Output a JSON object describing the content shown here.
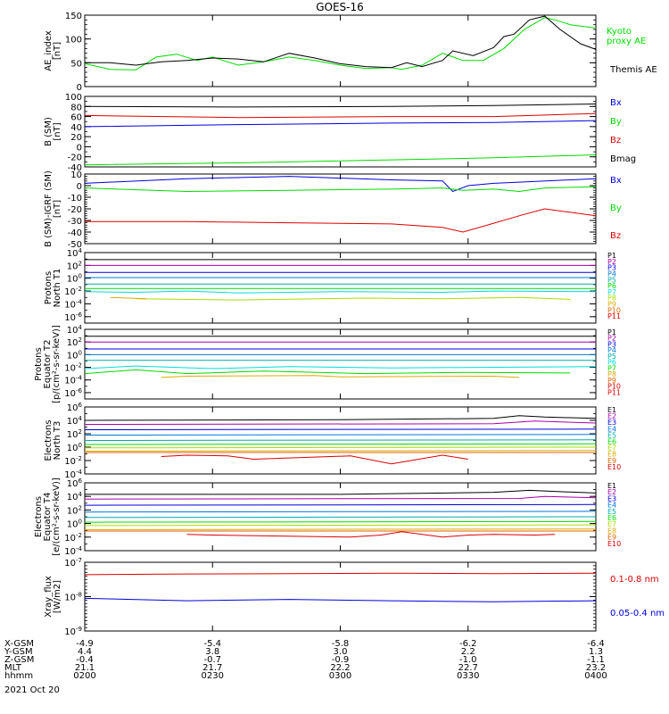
{
  "title": "GOES-16",
  "date_label": "2021 Oct 20",
  "chart_data": [
    {
      "type": "line",
      "ylabel": [
        "AE_index",
        "[nT]"
      ],
      "ylim": [
        0,
        150
      ],
      "ytick_labels": [
        "0",
        "50",
        "100",
        "150"
      ],
      "ytick_values": [
        0,
        50,
        100,
        150
      ],
      "minor_step": 10,
      "log": false,
      "series": [
        {
          "name": "Kyoto",
          "name2": "proxy AE",
          "color": "#00dd00",
          "x": [
            0,
            0.05,
            0.1,
            0.14,
            0.18,
            0.22,
            0.25,
            0.3,
            0.35,
            0.4,
            0.45,
            0.5,
            0.55,
            0.6,
            0.62,
            0.66,
            0.7,
            0.74,
            0.78,
            0.82,
            0.86,
            0.9,
            0.92,
            0.95,
            1.0
          ],
          "y": [
            48,
            36,
            35,
            62,
            68,
            55,
            62,
            45,
            52,
            62,
            55,
            45,
            38,
            40,
            36,
            45,
            70,
            55,
            55,
            80,
            120,
            145,
            140,
            130,
            123
          ]
        },
        {
          "name": "Themis AE",
          "color": "#000000",
          "x": [
            0,
            0.05,
            0.1,
            0.15,
            0.2,
            0.25,
            0.3,
            0.35,
            0.4,
            0.45,
            0.5,
            0.55,
            0.6,
            0.63,
            0.66,
            0.7,
            0.72,
            0.76,
            0.8,
            0.82,
            0.84,
            0.87,
            0.9,
            0.93,
            0.97,
            1.0
          ],
          "y": [
            50,
            50,
            45,
            52,
            55,
            60,
            58,
            52,
            70,
            60,
            48,
            42,
            40,
            50,
            42,
            55,
            75,
            65,
            82,
            105,
            110,
            140,
            148,
            120,
            90,
            78
          ]
        }
      ]
    },
    {
      "type": "line",
      "ylabel": [
        "B (SM)",
        "[nT]"
      ],
      "ylim": [
        -40,
        100
      ],
      "ytick_labels": [
        "-40",
        "-20",
        "0",
        "20",
        "40",
        "60",
        "80",
        "100"
      ],
      "ytick_values": [
        -40,
        -20,
        0,
        20,
        40,
        60,
        80,
        100
      ],
      "minor_step": 10,
      "log": false,
      "series": [
        {
          "name": "Bx",
          "color": "#0000dd",
          "x": [
            0,
            0.3,
            0.6,
            0.8,
            1.0
          ],
          "y": [
            40,
            44,
            47,
            48,
            52
          ]
        },
        {
          "name": "By",
          "color": "#00dd00",
          "x": [
            0,
            0.3,
            0.6,
            0.8,
            1.0
          ],
          "y": [
            -36,
            -32,
            -26,
            -22,
            -16
          ]
        },
        {
          "name": "Bz",
          "color": "#dd0000",
          "x": [
            0,
            0.3,
            0.6,
            0.8,
            1.0
          ],
          "y": [
            62,
            58,
            60,
            60,
            66
          ]
        },
        {
          "name": "Bmag",
          "color": "#000000",
          "x": [
            0,
            0.3,
            0.6,
            0.8,
            1.0
          ],
          "y": [
            80,
            79,
            80,
            82,
            85
          ]
        }
      ]
    },
    {
      "type": "line",
      "ylabel": [
        "B (SM)-IGRF (SM)",
        "[nT]"
      ],
      "ylim": [
        -50,
        10
      ],
      "ytick_labels": [
        "-50",
        "-40",
        "-30",
        "-20",
        "-10",
        "0",
        "10"
      ],
      "ytick_values": [
        -50,
        -40,
        -30,
        -20,
        -10,
        0,
        10
      ],
      "minor_step": 2,
      "log": false,
      "series": [
        {
          "name": "Bx",
          "color": "#0000dd",
          "x": [
            0,
            0.2,
            0.4,
            0.6,
            0.7,
            0.72,
            0.75,
            0.8,
            0.85,
            1.0
          ],
          "y": [
            2,
            6,
            8,
            5,
            4,
            -5,
            0,
            2,
            3,
            6
          ]
        },
        {
          "name": "By",
          "color": "#00dd00",
          "x": [
            0,
            0.2,
            0.4,
            0.6,
            0.7,
            0.74,
            0.8,
            0.85,
            0.9,
            1.0
          ],
          "y": [
            -2,
            -5,
            -4,
            -3,
            -2,
            -4,
            -3,
            -5,
            -2,
            -1
          ]
        },
        {
          "name": "Bz",
          "color": "#dd0000",
          "x": [
            0,
            0.2,
            0.4,
            0.6,
            0.7,
            0.74,
            0.78,
            0.85,
            0.9,
            1.0
          ],
          "y": [
            -31,
            -31,
            -32,
            -33,
            -36,
            -40,
            -35,
            -26,
            -20,
            -26
          ]
        }
      ]
    },
    {
      "type": "line",
      "ylabel": [
        "Protons",
        "North T1"
      ],
      "ylim": [
        -7,
        4
      ],
      "ytick_labels": [
        "10^-6",
        "10^-4",
        "10^-2",
        "10^0",
        "10^2",
        "10^4"
      ],
      "ytick_values": [
        -6,
        -4,
        -2,
        0,
        2,
        4
      ],
      "minor_step": 1,
      "log": true,
      "series": [
        {
          "name": "P1",
          "color": "#000000",
          "x": [
            0,
            1
          ],
          "y": [
            2.9,
            2.9
          ]
        },
        {
          "name": "P2",
          "color": "#aa00aa",
          "x": [
            0,
            1
          ],
          "y": [
            2.0,
            2.0
          ]
        },
        {
          "name": "P3",
          "color": "#0000dd",
          "x": [
            0,
            1
          ],
          "y": [
            0.9,
            0.9
          ]
        },
        {
          "name": "P4",
          "color": "#0077dd",
          "x": [
            0,
            1
          ],
          "y": [
            0.1,
            0.1
          ]
        },
        {
          "name": "P5",
          "color": "#00aaaa",
          "x": [
            0,
            1
          ],
          "y": [
            -0.9,
            -0.9
          ]
        },
        {
          "name": "P6",
          "color": "#00dd00",
          "x": [
            0,
            1
          ],
          "y": [
            -1.6,
            -1.6
          ]
        },
        {
          "name": "P7",
          "color": "#00dddd",
          "x": [
            0,
            0.1,
            0.2,
            0.3,
            0.5,
            0.7,
            0.8,
            1.0
          ],
          "y": [
            -2.1,
            -2.2,
            -2.0,
            -2.3,
            -2.1,
            -2.2,
            -2.0,
            -2.1
          ]
        },
        {
          "name": "P8",
          "color": "#aadd00",
          "x": [
            0.1,
            0.3,
            0.55,
            0.7,
            0.85,
            0.95
          ],
          "y": [
            -3.2,
            -3.4,
            -3.1,
            -3.2,
            -3.0,
            -3.3
          ]
        },
        {
          "name": "P9",
          "color": "#ddaa00",
          "x": [
            0.05,
            0.12
          ],
          "y": [
            -3.0,
            -3.2
          ]
        },
        {
          "name": "P10",
          "color": "#dd6600",
          "x": [],
          "y": []
        },
        {
          "name": "P11",
          "color": "#dd0000",
          "x": [],
          "y": []
        }
      ]
    },
    {
      "type": "line",
      "ylabel": [
        "Protons",
        "Equator T2",
        "[p/(cm²-s-sr-keV)]"
      ],
      "ylim": [
        -7,
        4
      ],
      "ytick_labels": [
        "10^-6",
        "10^-4",
        "10^-2",
        "10^0",
        "10^2",
        "10^4"
      ],
      "ytick_values": [
        -6,
        -4,
        -2,
        0,
        2,
        4
      ],
      "minor_step": 1,
      "log": true,
      "series": [
        {
          "name": "P1",
          "color": "#000000",
          "x": [
            0,
            1
          ],
          "y": [
            2.9,
            2.9
          ]
        },
        {
          "name": "P2",
          "color": "#aa00aa",
          "x": [
            0,
            1
          ],
          "y": [
            2.0,
            2.0
          ]
        },
        {
          "name": "P3",
          "color": "#0000dd",
          "x": [
            0,
            1
          ],
          "y": [
            0.9,
            0.9
          ]
        },
        {
          "name": "P4",
          "color": "#0077dd",
          "x": [
            0,
            1
          ],
          "y": [
            0.0,
            0.0
          ]
        },
        {
          "name": "P5",
          "color": "#00aaaa",
          "x": [
            0,
            1
          ],
          "y": [
            -0.9,
            -0.9
          ]
        },
        {
          "name": "P6",
          "color": "#00dddd",
          "x": [
            0,
            0.1,
            0.25,
            0.4,
            0.6,
            0.8,
            1.0
          ],
          "y": [
            -2.2,
            -1.8,
            -2.2,
            -1.9,
            -2.1,
            -2.0,
            -1.9
          ]
        },
        {
          "name": "P7",
          "color": "#00dd00",
          "x": [
            0,
            0.1,
            0.2,
            0.35,
            0.55,
            0.75,
            0.95
          ],
          "y": [
            -3.0,
            -2.4,
            -3.0,
            -2.6,
            -3.0,
            -2.8,
            -2.9
          ]
        },
        {
          "name": "P8",
          "color": "#ddaa00",
          "x": [
            0.15,
            0.2,
            0.45,
            0.5,
            0.8,
            0.85
          ],
          "y": [
            -3.6,
            -3.4,
            -3.3,
            -3.5,
            -3.4,
            -3.6
          ]
        },
        {
          "name": "P9",
          "color": "#dd6600",
          "x": [],
          "y": []
        },
        {
          "name": "P10",
          "color": "#dd0000",
          "x": [],
          "y": []
        },
        {
          "name": "P11",
          "color": "#dd0000",
          "x": [],
          "y": []
        }
      ]
    },
    {
      "type": "line",
      "ylabel": [
        "Electrons",
        "North T3"
      ],
      "ylim": [
        -4,
        6
      ],
      "ytick_labels": [
        "10^-4",
        "10^-2",
        "10^0",
        "10^2",
        "10^4",
        "10^6"
      ],
      "ytick_values": [
        -4,
        -2,
        0,
        2,
        4,
        6
      ],
      "minor_step": 1,
      "log": true,
      "series": [
        {
          "name": "E1",
          "color": "#000000",
          "x": [
            0,
            0.5,
            0.8,
            0.85,
            0.9,
            1.0
          ],
          "y": [
            4.0,
            4.1,
            4.3,
            4.7,
            4.5,
            4.3
          ]
        },
        {
          "name": "E2",
          "color": "#aa00aa",
          "x": [
            0,
            0.8,
            0.88,
            1.0
          ],
          "y": [
            3.4,
            3.5,
            3.9,
            3.6
          ]
        },
        {
          "name": "E3",
          "color": "#0000dd",
          "x": [
            0,
            1
          ],
          "y": [
            2.6,
            2.7
          ]
        },
        {
          "name": "E4",
          "color": "#0077dd",
          "x": [
            0,
            1
          ],
          "y": [
            1.8,
            1.9
          ]
        },
        {
          "name": "E5",
          "color": "#00aaaa",
          "x": [
            0,
            1
          ],
          "y": [
            1.0,
            1.1
          ]
        },
        {
          "name": "E6",
          "color": "#00dd00",
          "x": [
            0,
            1
          ],
          "y": [
            0.4,
            0.5
          ]
        },
        {
          "name": "E7",
          "color": "#aadd00",
          "x": [
            0,
            1
          ],
          "y": [
            -0.1,
            0.0
          ]
        },
        {
          "name": "E8",
          "color": "#ddaa00",
          "x": [
            0,
            1
          ],
          "y": [
            -0.6,
            -0.5
          ]
        },
        {
          "name": "E9",
          "color": "#dd6600",
          "x": [
            0,
            1
          ],
          "y": [
            -0.8,
            -0.8
          ]
        },
        {
          "name": "E10",
          "color": "#dd0000",
          "x": [
            0.15,
            0.2,
            0.28,
            0.33,
            0.52,
            0.6,
            0.7,
            0.75
          ],
          "y": [
            -1.4,
            -1.2,
            -1.3,
            -1.8,
            -1.3,
            -2.5,
            -1.2,
            -1.8
          ]
        }
      ]
    },
    {
      "type": "line",
      "ylabel": [
        "Electrons",
        "Equator T4",
        "[e/(cm²-s-sr-keV)]"
      ],
      "ylim": [
        -4,
        6
      ],
      "ytick_labels": [
        "10^-4",
        "10^-2",
        "10^0",
        "10^2",
        "10^4",
        "10^6"
      ],
      "ytick_values": [
        -4,
        -2,
        0,
        2,
        4,
        6
      ],
      "minor_step": 1,
      "log": true,
      "series": [
        {
          "name": "E1",
          "color": "#000000",
          "x": [
            0,
            0.5,
            0.8,
            0.87,
            0.93,
            1.0
          ],
          "y": [
            4.3,
            4.3,
            4.6,
            4.9,
            4.7,
            4.5
          ]
        },
        {
          "name": "E2",
          "color": "#aa00aa",
          "x": [
            0,
            0.85,
            0.9,
            1.0
          ],
          "y": [
            3.6,
            3.7,
            4.0,
            3.8
          ]
        },
        {
          "name": "E3",
          "color": "#0000dd",
          "x": [
            0,
            1
          ],
          "y": [
            2.7,
            2.8
          ]
        },
        {
          "name": "E4",
          "color": "#0077dd",
          "x": [
            0,
            1
          ],
          "y": [
            1.7,
            1.8
          ]
        },
        {
          "name": "E5",
          "color": "#00aaaa",
          "x": [
            0,
            1
          ],
          "y": [
            0.9,
            1.0
          ]
        },
        {
          "name": "E6",
          "color": "#00dd00",
          "x": [
            0,
            1
          ],
          "y": [
            0.2,
            0.3
          ]
        },
        {
          "name": "E7",
          "color": "#aadd00",
          "x": [
            0,
            1
          ],
          "y": [
            -0.3,
            -0.2
          ]
        },
        {
          "name": "E8",
          "color": "#ddaa00",
          "x": [
            0,
            1
          ],
          "y": [
            -0.9,
            -0.8
          ]
        },
        {
          "name": "E9",
          "color": "#dd6600",
          "x": [
            0,
            1
          ],
          "y": [
            -1.1,
            -1.1
          ]
        },
        {
          "name": "E10",
          "color": "#dd0000",
          "x": [
            0.2,
            0.25,
            0.52,
            0.58,
            0.62,
            0.7,
            0.75,
            0.8,
            0.88,
            0.92
          ],
          "y": [
            -1.6,
            -1.7,
            -2.0,
            -1.7,
            -1.2,
            -2.0,
            -1.7,
            -1.6,
            -1.7,
            -1.6
          ]
        }
      ]
    },
    {
      "type": "line",
      "ylabel": [
        "Xray_flux",
        "[W/m2]"
      ],
      "ylim": [
        -9,
        -7
      ],
      "ytick_labels": [
        "10^-9",
        "10^-8",
        "10^-7"
      ],
      "ytick_values": [
        -9,
        -8,
        -7
      ],
      "minor_step": 0.1,
      "log": true,
      "series": [
        {
          "name": "0.1-0.8 nm",
          "color": "#dd0000",
          "x": [
            0,
            0.2,
            0.4,
            0.6,
            0.8,
            1.0
          ],
          "y": [
            -7.36,
            -7.34,
            -7.33,
            -7.32,
            -7.33,
            -7.32
          ]
        },
        {
          "name": "0.05-0.4 nm",
          "color": "#0000dd",
          "x": [
            0,
            0.2,
            0.4,
            0.6,
            0.8,
            1.0
          ],
          "y": [
            -8.05,
            -8.12,
            -8.08,
            -8.12,
            -8.15,
            -8.12
          ]
        }
      ]
    }
  ],
  "xaxis": {
    "row_labels": [
      "X-GSM",
      "Y-GSM",
      "Z-GSM",
      "MLT",
      "hhmm"
    ],
    "columns": [
      {
        "values": [
          "-4.9",
          "4.4",
          "-0.4",
          "21.1",
          "0200"
        ]
      },
      {
        "values": [
          "-5.4",
          "3.8",
          "-0.7",
          "21.7",
          "0230"
        ]
      },
      {
        "values": [
          "-5.8",
          "3.0",
          "-0.9",
          "22.2",
          "0300"
        ]
      },
      {
        "values": [
          "-6.2",
          "2.2",
          "-1.0",
          "22.7",
          "0330"
        ]
      },
      {
        "values": [
          "-6.4",
          "1.3",
          "-1.1",
          "23.2",
          "0400"
        ]
      }
    ]
  }
}
